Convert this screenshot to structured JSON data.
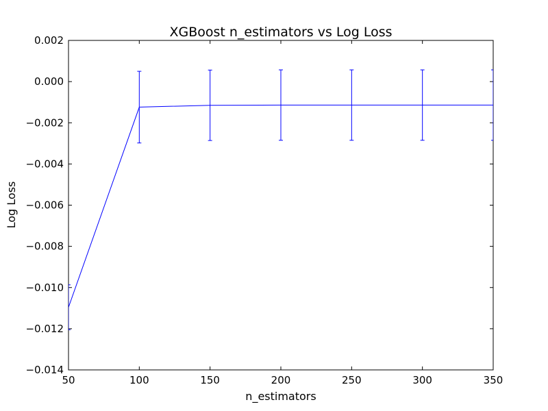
{
  "chart_data": {
    "type": "line",
    "title": "XGBoost n_estimators vs Log Loss",
    "xlabel": "n_estimators",
    "ylabel": "Log Loss",
    "xlim": [
      50,
      350
    ],
    "ylim": [
      -0.014,
      0.002
    ],
    "xticks": [
      50,
      100,
      150,
      200,
      250,
      300,
      350
    ],
    "yticks": [
      -0.014,
      -0.012,
      -0.01,
      -0.008,
      -0.006,
      -0.004,
      -0.002,
      0.0,
      0.002
    ],
    "xtick_labels": [
      "50",
      "100",
      "150",
      "200",
      "250",
      "300",
      "350"
    ],
    "ytick_labels": [
      "−0.014",
      "−0.012",
      "−0.010",
      "−0.008",
      "−0.006",
      "−0.004",
      "−0.002",
      "0.000",
      "0.002"
    ],
    "grid": false,
    "series": [
      {
        "x": [
          50,
          100,
          150,
          200,
          250,
          300,
          350
        ],
        "y": [
          -0.01096,
          -0.00124,
          -0.00115,
          -0.00114,
          -0.00114,
          -0.00114,
          -0.00114
        ],
        "yerr": [
          0.00109,
          0.00174,
          0.00171,
          0.00171,
          0.00171,
          0.00171,
          0.00171
        ],
        "color": "#0000ff"
      }
    ]
  }
}
